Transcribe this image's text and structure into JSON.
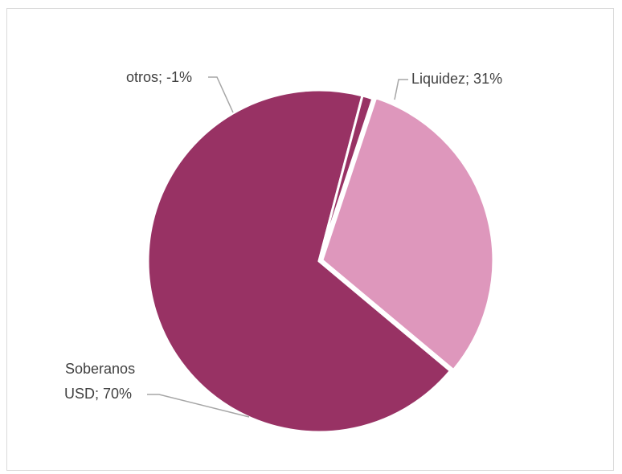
{
  "chart_data": {
    "type": "pie",
    "slices": [
      {
        "name": "Liquidez",
        "value": 31,
        "label": "Liquidez; 31%",
        "color": "#de97bc"
      },
      {
        "name": "Soberanos USD",
        "value": 70,
        "label_lines": [
          "Soberanos",
          "USD; 70%"
        ],
        "color": "#983264"
      },
      {
        "name": "otros",
        "value": -1,
        "label": "otros; -1%",
        "color": "#983264"
      }
    ],
    "separator_color": "#ffffff",
    "leader_line_color": "#a6a6a6"
  }
}
